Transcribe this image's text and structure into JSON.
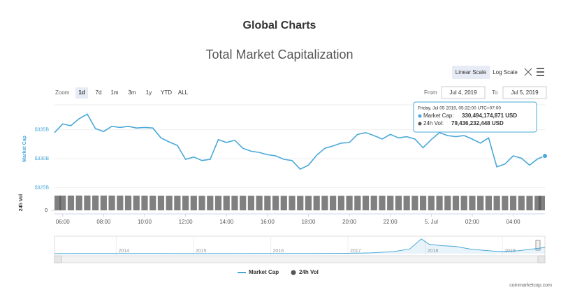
{
  "page": {
    "heading": "Global Charts",
    "credit": "coinmarketcap.com"
  },
  "controls": {
    "scale_buttons": [
      "Linear Scale",
      "Log Scale"
    ],
    "zoom_label": "Zoom",
    "zoom_buttons": [
      "1d",
      "7d",
      "1m",
      "3m",
      "1y",
      "YTD",
      "ALL"
    ],
    "from_label": "From",
    "from": "Jul 4, 2019",
    "to_label": "To",
    "to": "Jul 5, 2019"
  },
  "tooltip": {
    "time": "Friday, Jul 05 2019, 05:32:00 UTC+07:00",
    "rows": [
      {
        "label": "Market Cap:",
        "value": "330,494,174,871 USD"
      },
      {
        "label": "24h Vol:",
        "value": "79,436,232,448 USD"
      }
    ]
  },
  "chart_data": {
    "type": "line",
    "title": "Total Market Capitalization",
    "x": [
      5.6,
      6.0,
      6.4,
      6.8,
      7.2,
      7.6,
      8.0,
      8.4,
      8.8,
      9.2,
      9.6,
      10.0,
      10.4,
      10.8,
      11.2,
      11.6,
      12.0,
      12.4,
      12.8,
      13.2,
      13.6,
      14.0,
      14.4,
      14.8,
      15.2,
      15.6,
      16.0,
      16.4,
      16.8,
      17.2,
      17.6,
      18.0,
      18.4,
      18.8,
      19.2,
      19.6,
      20.0,
      20.4,
      20.8,
      21.2,
      21.6,
      22.0,
      22.4,
      22.8,
      23.2,
      23.6,
      24.0,
      24.4,
      24.8,
      25.2,
      25.6,
      26.0,
      26.4,
      26.8,
      27.2,
      27.6,
      28.0,
      28.4,
      28.8,
      29.2,
      29.55
    ],
    "series": [
      {
        "name": "Market Cap",
        "type": "line",
        "color": "#4aa8d8",
        "values": [
          334.5,
          336.0,
          335.7,
          336.9,
          337.7,
          335.2,
          334.7,
          335.6,
          335.4,
          335.6,
          335.3,
          335.4,
          335.3,
          333.6,
          332.9,
          332.3,
          329.9,
          330.3,
          329.7,
          329.9,
          333.3,
          332.8,
          333.2,
          331.8,
          331.3,
          331.1,
          330.7,
          330.5,
          329.9,
          329.7,
          328.2,
          328.9,
          330.6,
          331.8,
          332.2,
          332.7,
          332.8,
          334.2,
          334.5,
          334.0,
          333.4,
          334.2,
          333.6,
          333.8,
          333.4,
          331.9,
          333.3,
          334.5,
          334.0,
          333.8,
          334.0,
          333.4,
          332.7,
          333.6,
          328.6,
          329.1,
          330.5,
          330.1,
          328.9,
          330.0,
          330.49
        ]
      },
      {
        "name": "24h Vol",
        "type": "bar",
        "axis": "y2",
        "color": "#555555",
        "values": [
          80.6,
          80.7,
          80.8,
          80.9,
          81.0,
          81.0,
          80.9,
          80.8,
          80.7,
          80.6,
          80.5,
          80.4,
          80.3,
          80.2,
          80.1,
          80.0,
          79.9,
          79.8,
          79.7,
          79.6,
          79.7,
          79.8,
          79.9,
          80.0,
          80.0,
          79.9,
          79.8,
          79.7,
          79.6,
          79.5,
          79.4,
          79.4,
          79.5,
          79.6,
          79.7,
          79.8,
          79.9,
          80.0,
          80.1,
          80.1,
          80.0,
          79.9,
          79.8,
          79.7,
          79.7,
          79.6,
          79.6,
          79.7,
          79.8,
          79.8,
          79.7,
          79.6,
          79.5,
          79.5,
          79.4,
          79.4,
          79.5,
          79.5,
          79.4,
          79.4,
          79.44
        ]
      }
    ],
    "xlim": [
      5.6,
      29.55
    ],
    "xticks": [
      {
        "value": 6,
        "label": "06:00"
      },
      {
        "value": 8,
        "label": "08:00"
      },
      {
        "value": 10,
        "label": "10:00"
      },
      {
        "value": 12,
        "label": "12:00"
      },
      {
        "value": 14,
        "label": "14:00"
      },
      {
        "value": 16,
        "label": "16:00"
      },
      {
        "value": 18,
        "label": "18:00"
      },
      {
        "value": 20,
        "label": "20:00"
      },
      {
        "value": 22,
        "label": "22:00"
      },
      {
        "value": 24,
        "label": "5. Jul"
      },
      {
        "value": 26,
        "label": "02:00"
      },
      {
        "value": 28,
        "label": "04:00"
      }
    ],
    "ylim": [
      324.6,
      339.3
    ],
    "yticks": [
      {
        "value": 325,
        "label": "$325B"
      },
      {
        "value": 330,
        "label": "$330B"
      },
      {
        "value": 335,
        "label": "$335B"
      }
    ],
    "ylabel": "Market Cap",
    "y2label": "24h Vol",
    "y2lim": [
      0,
      84
    ],
    "y2ticks": [
      0
    ],
    "grid": true,
    "navigator": {
      "type": "area",
      "color": "#4aa8d8",
      "x": [
        2013.2,
        2013.6,
        2014.0,
        2014.5,
        2015.0,
        2015.5,
        2016.0,
        2016.5,
        2017.0,
        2017.3,
        2017.6,
        2017.8,
        2017.95,
        2018.05,
        2018.2,
        2018.4,
        2018.6,
        2018.9,
        2019.0,
        2019.2,
        2019.4,
        2019.55
      ],
      "values": [
        2,
        8,
        12,
        7,
        5,
        4,
        7,
        12,
        18,
        40,
        110,
        250,
        780,
        500,
        430,
        380,
        230,
        130,
        120,
        150,
        250,
        330
      ],
      "xlim": [
        2013.2,
        2019.55
      ],
      "ylim": [
        0,
        850
      ],
      "xticks": [
        2014,
        2015,
        2016,
        2017,
        2018,
        2019
      ]
    }
  }
}
